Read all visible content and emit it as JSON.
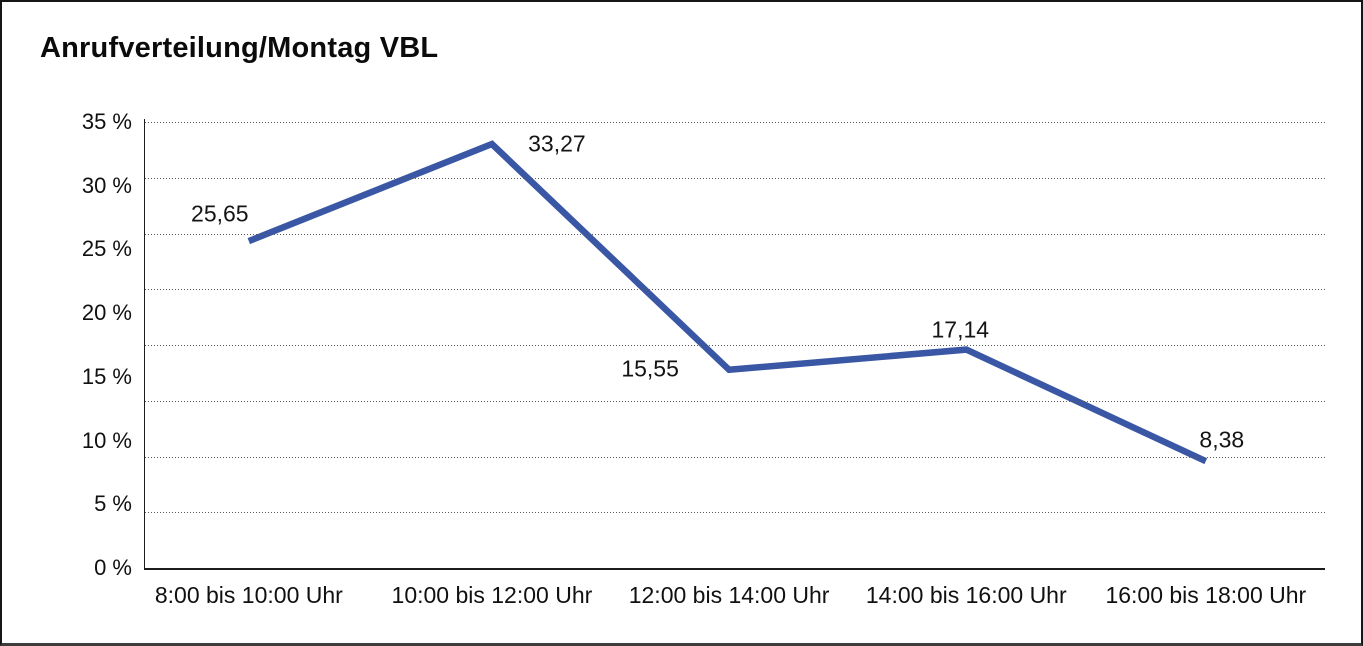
{
  "chart_data": {
    "type": "line",
    "title": "Anrufverteilung/Montag VBL",
    "categories": [
      "8:00 bis 10:00 Uhr",
      "10:00 bis 12:00 Uhr",
      "12:00 bis 14:00 Uhr",
      "14:00 bis 16:00 Uhr",
      "16:00 bis 18:00 Uhr"
    ],
    "values": [
      25.65,
      33.27,
      15.55,
      17.14,
      8.38
    ],
    "data_labels": [
      "25,65",
      "33,27",
      "15,55",
      "17,14",
      "8,38"
    ],
    "xlabel": "",
    "ylabel": "",
    "ylim": [
      0,
      35
    ],
    "ytick_step": 5,
    "ytick_labels_top_to_bottom": [
      "35 %",
      "30 %",
      "25 %",
      "20 %",
      "15 %",
      "10 %",
      "5 %",
      "0 %"
    ],
    "grid": "horizontal-dotted",
    "dotted_gridline_intervals": 8,
    "legend": "none",
    "line_color": "#3A57A5",
    "text_color": "#101010",
    "background_color": "#ffffff"
  }
}
